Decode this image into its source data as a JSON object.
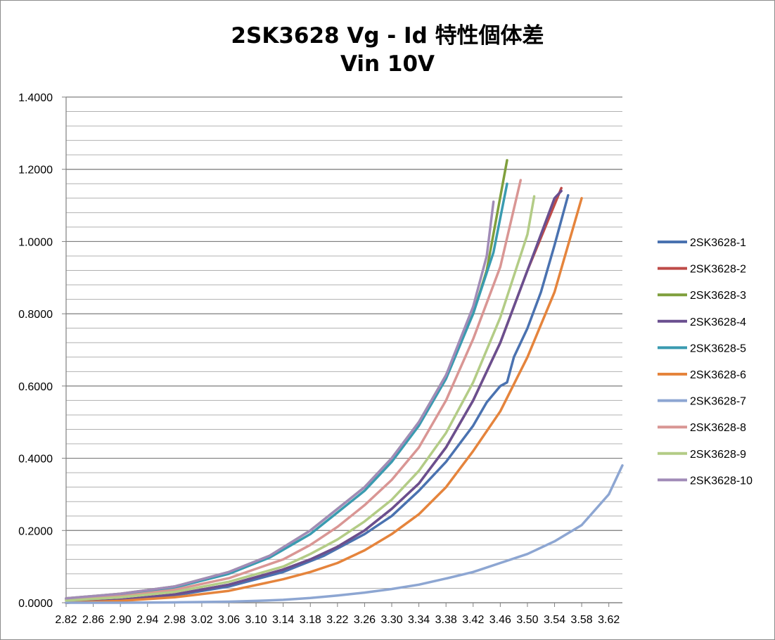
{
  "chart_data": {
    "type": "line",
    "title": "2SK3628  Vg - Id 特性個体差",
    "subtitle": "Vin 10V",
    "xlabel": "",
    "ylabel": "",
    "x_ticks": [
      "2.82",
      "2.86",
      "2.90",
      "2.94",
      "2.98",
      "3.02",
      "3.06",
      "3.10",
      "3.14",
      "3.18",
      "3.22",
      "3.26",
      "3.30",
      "3.34",
      "3.38",
      "3.42",
      "3.46",
      "3.50",
      "3.54",
      "3.58",
      "3.62"
    ],
    "xlim": [
      2.82,
      3.64
    ],
    "y_ticks": [
      "0.0000",
      "0.2000",
      "0.4000",
      "0.6000",
      "0.8000",
      "1.0000",
      "1.2000",
      "1.4000"
    ],
    "ylim": [
      0,
      1.4
    ],
    "y_minor_step": 0.04,
    "grid": true,
    "legend_position": "right",
    "series": [
      {
        "name": "2SK3628-1",
        "color": "#4a72b0",
        "x": [
          2.82,
          2.9,
          2.98,
          3.06,
          3.14,
          3.2,
          3.26,
          3.3,
          3.34,
          3.38,
          3.42,
          3.44,
          3.46,
          3.47,
          3.48,
          3.5,
          3.52,
          3.54,
          3.56
        ],
        "y": [
          0.0,
          0.007,
          0.02,
          0.045,
          0.085,
          0.13,
          0.19,
          0.24,
          0.31,
          0.39,
          0.49,
          0.555,
          0.6,
          0.61,
          0.68,
          0.76,
          0.86,
          0.99,
          1.128
        ]
      },
      {
        "name": "2SK3628-2",
        "color": "#be4b48",
        "x": [
          2.82,
          2.9,
          2.98,
          3.06,
          3.14,
          3.18,
          3.22,
          3.26,
          3.3,
          3.34,
          3.38,
          3.42,
          3.46,
          3.5,
          3.55
        ],
        "y": [
          0.0,
          0.008,
          0.023,
          0.05,
          0.092,
          0.12,
          0.155,
          0.2,
          0.26,
          0.33,
          0.43,
          0.56,
          0.72,
          0.92,
          1.148
        ]
      },
      {
        "name": "2SK3628-3",
        "color": "#7f9f3c",
        "x": [
          2.82,
          2.9,
          2.98,
          3.06,
          3.12,
          3.18,
          3.22,
          3.26,
          3.3,
          3.34,
          3.38,
          3.42,
          3.44,
          3.47
        ],
        "y": [
          0.012,
          0.025,
          0.045,
          0.085,
          0.13,
          0.2,
          0.26,
          0.32,
          0.4,
          0.5,
          0.63,
          0.8,
          0.92,
          1.225
        ]
      },
      {
        "name": "2SK3628-4",
        "color": "#6a4f8f",
        "x": [
          2.82,
          2.9,
          2.98,
          3.06,
          3.14,
          3.18,
          3.22,
          3.26,
          3.3,
          3.34,
          3.38,
          3.42,
          3.46,
          3.5,
          3.54,
          3.55
        ],
        "y": [
          0.0,
          0.008,
          0.023,
          0.05,
          0.092,
          0.12,
          0.155,
          0.2,
          0.26,
          0.33,
          0.43,
          0.56,
          0.72,
          0.92,
          1.12,
          1.14
        ]
      },
      {
        "name": "2SK3628-5",
        "color": "#3a9bb0",
        "x": [
          2.82,
          2.9,
          2.98,
          3.06,
          3.12,
          3.18,
          3.22,
          3.26,
          3.3,
          3.34,
          3.38,
          3.42,
          3.45,
          3.47
        ],
        "y": [
          0.01,
          0.022,
          0.042,
          0.08,
          0.125,
          0.19,
          0.25,
          0.31,
          0.39,
          0.49,
          0.62,
          0.8,
          0.97,
          1.16
        ]
      },
      {
        "name": "2SK3628-6",
        "color": "#e5843c",
        "x": [
          2.82,
          2.9,
          2.98,
          3.06,
          3.14,
          3.18,
          3.22,
          3.26,
          3.3,
          3.34,
          3.38,
          3.42,
          3.46,
          3.5,
          3.54,
          3.56,
          3.58
        ],
        "y": [
          0.0,
          0.005,
          0.015,
          0.033,
          0.065,
          0.085,
          0.11,
          0.145,
          0.19,
          0.245,
          0.32,
          0.42,
          0.53,
          0.68,
          0.86,
          0.99,
          1.12
        ]
      },
      {
        "name": "2SK3628-7",
        "color": "#8da6d2",
        "x": [
          2.82,
          2.9,
          2.98,
          3.06,
          3.1,
          3.14,
          3.18,
          3.22,
          3.26,
          3.3,
          3.34,
          3.38,
          3.42,
          3.46,
          3.5,
          3.54,
          3.58,
          3.62,
          3.64
        ],
        "y": [
          0.0,
          0.0,
          0.001,
          0.003,
          0.005,
          0.008,
          0.013,
          0.02,
          0.028,
          0.038,
          0.05,
          0.067,
          0.085,
          0.11,
          0.135,
          0.17,
          0.215,
          0.3,
          0.38
        ]
      },
      {
        "name": "2SK3628-8",
        "color": "#d99694",
        "x": [
          2.82,
          2.9,
          2.98,
          3.06,
          3.14,
          3.18,
          3.22,
          3.26,
          3.3,
          3.34,
          3.38,
          3.42,
          3.46,
          3.49
        ],
        "y": [
          0.008,
          0.018,
          0.036,
          0.068,
          0.12,
          0.16,
          0.21,
          0.27,
          0.34,
          0.43,
          0.56,
          0.73,
          0.93,
          1.17
        ]
      },
      {
        "name": "2SK3628-9",
        "color": "#b3cc86",
        "x": [
          2.82,
          2.9,
          2.98,
          3.06,
          3.14,
          3.18,
          3.22,
          3.26,
          3.3,
          3.34,
          3.38,
          3.42,
          3.46,
          3.5,
          3.51
        ],
        "y": [
          0.006,
          0.015,
          0.03,
          0.058,
          0.1,
          0.135,
          0.175,
          0.225,
          0.285,
          0.365,
          0.47,
          0.61,
          0.79,
          1.02,
          1.125
        ]
      },
      {
        "name": "2SK3628-10",
        "color": "#a18bb7",
        "x": [
          2.82,
          2.9,
          2.98,
          3.06,
          3.12,
          3.18,
          3.22,
          3.26,
          3.3,
          3.34,
          3.38,
          3.42,
          3.44,
          3.45
        ],
        "y": [
          0.012,
          0.025,
          0.045,
          0.085,
          0.13,
          0.2,
          0.26,
          0.32,
          0.4,
          0.5,
          0.63,
          0.82,
          0.96,
          1.11
        ]
      }
    ]
  }
}
